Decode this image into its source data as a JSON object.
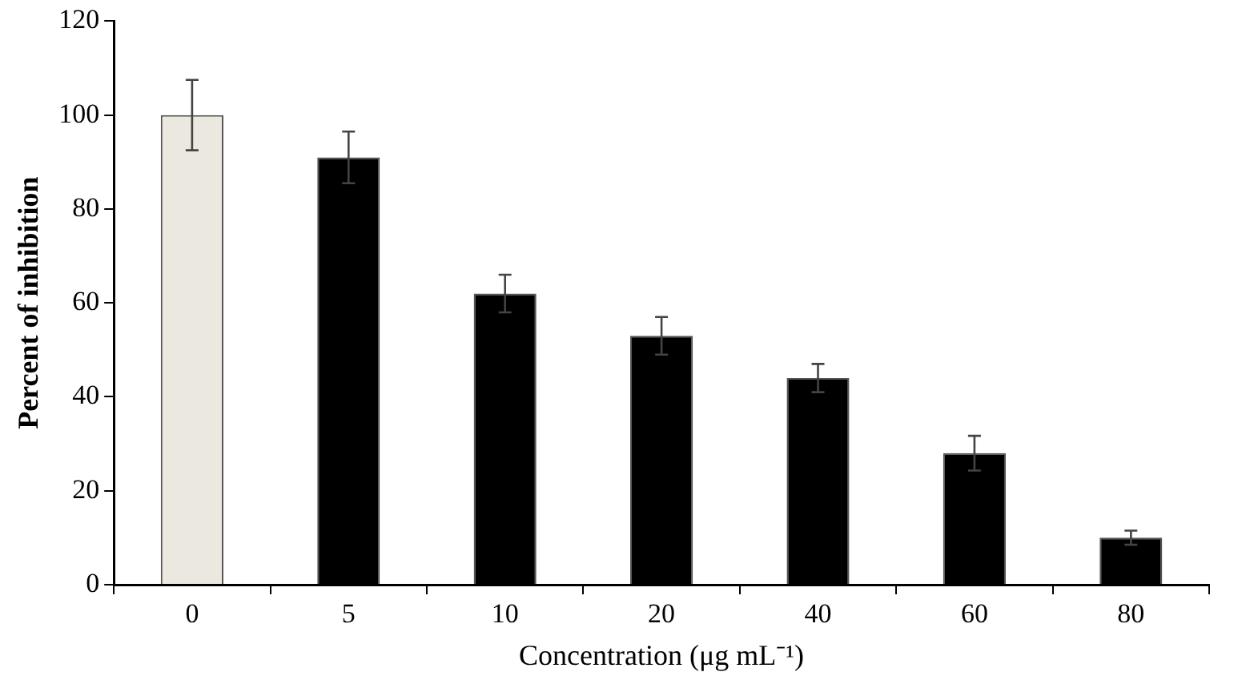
{
  "chart_data": {
    "type": "bar",
    "xlabel": "Concentration (μg mL⁻¹)",
    "ylabel": "Percent of inhibition",
    "categories": [
      "0",
      "5",
      "10",
      "20",
      "40",
      "60",
      "80"
    ],
    "values": [
      100,
      91,
      62,
      53,
      44,
      28,
      10
    ],
    "errors": [
      7.5,
      5.5,
      4,
      4,
      3,
      3.7,
      1.5
    ],
    "colors": [
      "#ebe9df",
      "#000000",
      "#000000",
      "#000000",
      "#000000",
      "#000000",
      "#000000"
    ],
    "ylim": [
      0,
      120
    ],
    "yticks": [
      0,
      20,
      40,
      60,
      80,
      100,
      120
    ],
    "grid": false,
    "legend": false
  }
}
